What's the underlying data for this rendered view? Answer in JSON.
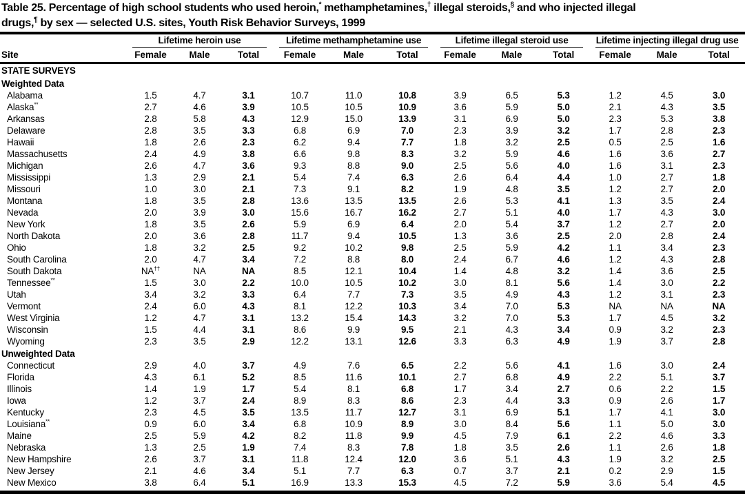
{
  "title_lines": [
    "Table 25. Percentage of high school students who used heroin,* methamphetamines,† illegal steroids,§ and who injected illegal",
    "drugs,¶ by sex — selected U.S. sites, Youth Risk Behavior Surveys, 1999"
  ],
  "table": {
    "site_header": "Site",
    "groups": [
      {
        "label": "Lifetime heroin use"
      },
      {
        "label": "Lifetime methamphetamine use"
      },
      {
        "label": "Lifetime illegal steroid use"
      },
      {
        "label": "Lifetime injecting illegal drug use"
      }
    ],
    "sub_headers": [
      "Female",
      "Male",
      "Total"
    ],
    "sections": [
      {
        "label": "STATE SURVEYS",
        "rows": []
      },
      {
        "label": "Weighted Data",
        "rows": [
          {
            "site": "Alabama",
            "values": [
              "1.5",
              "4.7",
              "3.1",
              "10.7",
              "11.0",
              "10.8",
              "3.9",
              "6.5",
              "5.3",
              "1.2",
              "4.5",
              "3.0"
            ]
          },
          {
            "site": "Alaska**",
            "values": [
              "2.7",
              "4.6",
              "3.9",
              "10.5",
              "10.5",
              "10.9",
              "3.6",
              "5.9",
              "5.0",
              "2.1",
              "4.3",
              "3.5"
            ]
          },
          {
            "site": "Arkansas",
            "values": [
              "2.8",
              "5.8",
              "4.3",
              "12.9",
              "15.0",
              "13.9",
              "3.1",
              "6.9",
              "5.0",
              "2.3",
              "5.3",
              "3.8"
            ]
          },
          {
            "site": "Delaware",
            "values": [
              "2.8",
              "3.5",
              "3.3",
              "6.8",
              "6.9",
              "7.0",
              "2.3",
              "3.9",
              "3.2",
              "1.7",
              "2.8",
              "2.3"
            ]
          },
          {
            "site": "Hawaii",
            "values": [
              "1.8",
              "2.6",
              "2.3",
              "6.2",
              "9.4",
              "7.7",
              "1.8",
              "3.2",
              "2.5",
              "0.5",
              "2.5",
              "1.6"
            ]
          },
          {
            "site": "Massachusetts",
            "values": [
              "2.4",
              "4.9",
              "3.8",
              "6.6",
              "9.8",
              "8.3",
              "3.2",
              "5.9",
              "4.6",
              "1.6",
              "3.6",
              "2.7"
            ]
          },
          {
            "site": "Michigan",
            "values": [
              "2.6",
              "4.7",
              "3.6",
              "9.3",
              "8.8",
              "9.0",
              "2.5",
              "5.6",
              "4.0",
              "1.6",
              "3.1",
              "2.3"
            ]
          },
          {
            "site": "Mississippi",
            "values": [
              "1.3",
              "2.9",
              "2.1",
              "5.4",
              "7.4",
              "6.3",
              "2.6",
              "6.4",
              "4.4",
              "1.0",
              "2.7",
              "1.8"
            ]
          },
          {
            "site": "Missouri",
            "values": [
              "1.0",
              "3.0",
              "2.1",
              "7.3",
              "9.1",
              "8.2",
              "1.9",
              "4.8",
              "3.5",
              "1.2",
              "2.7",
              "2.0"
            ]
          },
          {
            "site": "Montana",
            "values": [
              "1.8",
              "3.5",
              "2.8",
              "13.6",
              "13.5",
              "13.5",
              "2.6",
              "5.3",
              "4.1",
              "1.3",
              "3.5",
              "2.4"
            ]
          },
          {
            "site": "Nevada",
            "values": [
              "2.0",
              "3.9",
              "3.0",
              "15.6",
              "16.7",
              "16.2",
              "2.7",
              "5.1",
              "4.0",
              "1.7",
              "4.3",
              "3.0"
            ]
          },
          {
            "site": "New York",
            "values": [
              "1.8",
              "3.5",
              "2.6",
              "5.9",
              "6.9",
              "6.4",
              "2.0",
              "5.4",
              "3.7",
              "1.2",
              "2.7",
              "2.0"
            ]
          },
          {
            "site": "North Dakota",
            "values": [
              "2.0",
              "3.6",
              "2.8",
              "11.7",
              "9.4",
              "10.5",
              "1.3",
              "3.6",
              "2.5",
              "2.0",
              "2.8",
              "2.4"
            ]
          },
          {
            "site": "Ohio",
            "values": [
              "1.8",
              "3.2",
              "2.5",
              "9.2",
              "10.2",
              "9.8",
              "2.5",
              "5.9",
              "4.2",
              "1.1",
              "3.4",
              "2.3"
            ]
          },
          {
            "site": "South Carolina",
            "values": [
              "2.0",
              "4.7",
              "3.4",
              "7.2",
              "8.8",
              "8.0",
              "2.4",
              "6.7",
              "4.6",
              "1.2",
              "4.3",
              "2.8"
            ]
          },
          {
            "site": "South Dakota",
            "values": [
              "NA††",
              "NA",
              "NA",
              "8.5",
              "12.1",
              "10.4",
              "1.4",
              "4.8",
              "3.2",
              "1.4",
              "3.6",
              "2.5"
            ]
          },
          {
            "site": "Tennessee**",
            "values": [
              "1.5",
              "3.0",
              "2.2",
              "10.0",
              "10.5",
              "10.2",
              "3.0",
              "8.1",
              "5.6",
              "1.4",
              "3.0",
              "2.2"
            ]
          },
          {
            "site": "Utah",
            "values": [
              "3.4",
              "3.2",
              "3.3",
              "6.4",
              "7.7",
              "7.3",
              "3.5",
              "4.9",
              "4.3",
              "1.2",
              "3.1",
              "2.3"
            ]
          },
          {
            "site": "Vermont",
            "values": [
              "2.4",
              "6.0",
              "4.3",
              "8.1",
              "12.2",
              "10.3",
              "3.4",
              "7.0",
              "5.3",
              "NA",
              "NA",
              "NA"
            ]
          },
          {
            "site": "West Virginia",
            "values": [
              "1.2",
              "4.7",
              "3.1",
              "13.2",
              "15.4",
              "14.3",
              "3.2",
              "7.0",
              "5.3",
              "1.7",
              "4.5",
              "3.2"
            ]
          },
          {
            "site": "Wisconsin",
            "values": [
              "1.5",
              "4.4",
              "3.1",
              "8.6",
              "9.9",
              "9.5",
              "2.1",
              "4.3",
              "3.4",
              "0.9",
              "3.2",
              "2.3"
            ]
          },
          {
            "site": "Wyoming",
            "values": [
              "2.3",
              "3.5",
              "2.9",
              "12.2",
              "13.1",
              "12.6",
              "3.3",
              "6.3",
              "4.9",
              "1.9",
              "3.7",
              "2.8"
            ]
          }
        ]
      },
      {
        "label": "Unweighted Data",
        "rows": [
          {
            "site": "Connecticut",
            "values": [
              "2.9",
              "4.0",
              "3.7",
              "4.9",
              "7.6",
              "6.5",
              "2.2",
              "5.6",
              "4.1",
              "1.6",
              "3.0",
              "2.4"
            ]
          },
          {
            "site": "Florida",
            "values": [
              "4.3",
              "6.1",
              "5.2",
              "8.5",
              "11.6",
              "10.1",
              "2.7",
              "6.8",
              "4.9",
              "2.2",
              "5.1",
              "3.7"
            ]
          },
          {
            "site": "Illinois",
            "values": [
              "1.4",
              "1.9",
              "1.7",
              "5.4",
              "8.1",
              "6.8",
              "1.7",
              "3.4",
              "2.7",
              "0.6",
              "2.2",
              "1.5"
            ]
          },
          {
            "site": "Iowa",
            "values": [
              "1.2",
              "3.7",
              "2.4",
              "8.9",
              "8.3",
              "8.6",
              "2.3",
              "4.4",
              "3.3",
              "0.9",
              "2.6",
              "1.7"
            ]
          },
          {
            "site": "Kentucky",
            "values": [
              "2.3",
              "4.5",
              "3.5",
              "13.5",
              "11.7",
              "12.7",
              "3.1",
              "6.9",
              "5.1",
              "1.7",
              "4.1",
              "3.0"
            ]
          },
          {
            "site": "Louisiana**",
            "values": [
              "0.9",
              "6.0",
              "3.4",
              "6.8",
              "10.9",
              "8.9",
              "3.0",
              "8.4",
              "5.6",
              "1.1",
              "5.0",
              "3.0"
            ]
          },
          {
            "site": "Maine",
            "values": [
              "2.5",
              "5.9",
              "4.2",
              "8.2",
              "11.8",
              "9.9",
              "4.5",
              "7.9",
              "6.1",
              "2.2",
              "4.6",
              "3.3"
            ]
          },
          {
            "site": "Nebraska",
            "values": [
              "1.3",
              "2.5",
              "1.9",
              "7.4",
              "8.3",
              "7.8",
              "1.8",
              "3.5",
              "2.6",
              "1.1",
              "2.6",
              "1.8"
            ]
          },
          {
            "site": "New Hampshire",
            "values": [
              "2.6",
              "3.7",
              "3.1",
              "11.8",
              "12.4",
              "12.0",
              "3.6",
              "5.1",
              "4.3",
              "1.9",
              "3.2",
              "2.5"
            ]
          },
          {
            "site": "New Jersey",
            "values": [
              "2.1",
              "4.6",
              "3.4",
              "5.1",
              "7.7",
              "6.3",
              "0.7",
              "3.7",
              "2.1",
              "0.2",
              "2.9",
              "1.5"
            ]
          },
          {
            "site": "New Mexico",
            "values": [
              "3.8",
              "6.4",
              "5.1",
              "16.9",
              "13.3",
              "15.3",
              "4.5",
              "7.2",
              "5.9",
              "3.6",
              "5.4",
              "4.5"
            ]
          }
        ]
      }
    ]
  }
}
